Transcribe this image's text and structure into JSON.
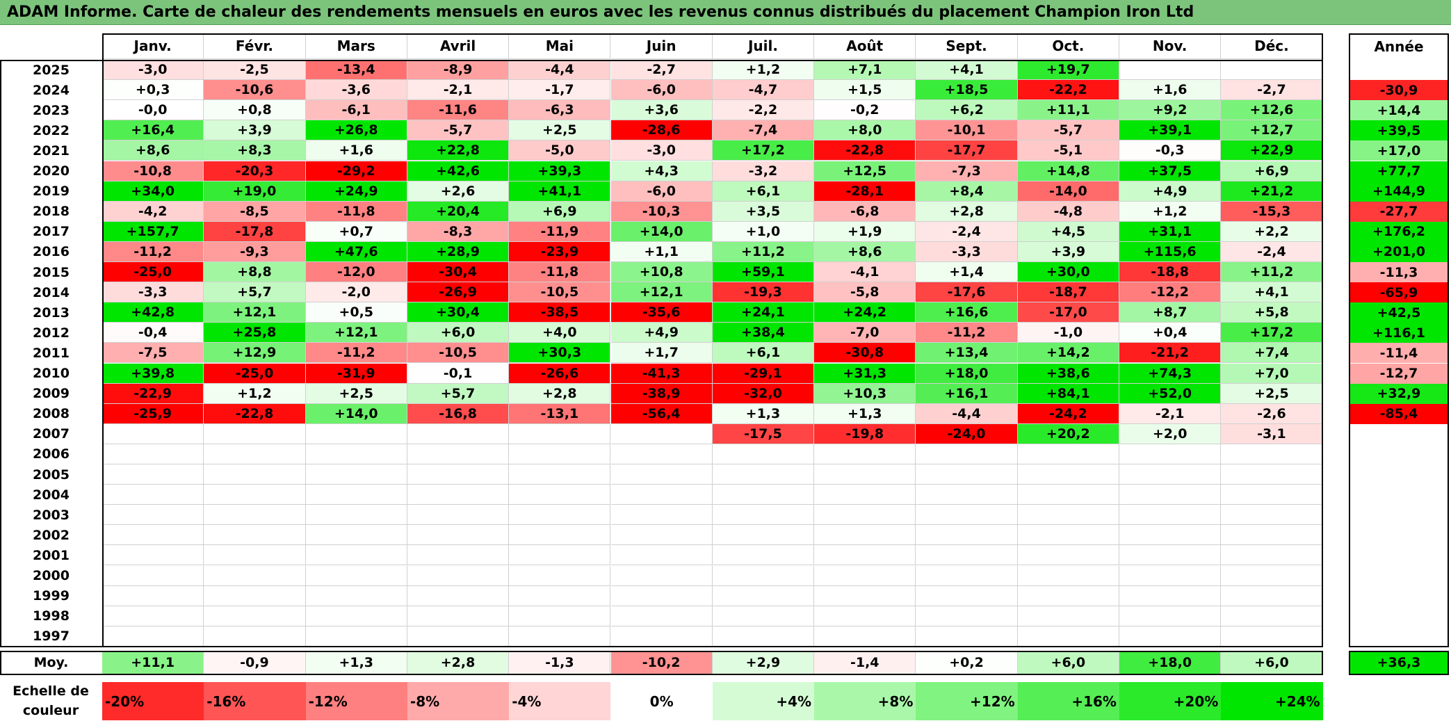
{
  "title": "ADAM Informe. Carte de chaleur des rendements mensuels en euros avec les revenus connus distribués du placement Champion Iron Ltd",
  "colors": {
    "title_bg": "#7cc47c",
    "negative": "#ff0000",
    "positive": "#00e600",
    "neutral": "#ffffff"
  },
  "chart_data": {
    "type": "heatmap",
    "title": "ADAM Informe. Carte de chaleur des rendements mensuels en euros avec les revenus connus distribués du placement Champion Iron Ltd",
    "months": [
      "Janv.",
      "Févr.",
      "Mars",
      "Avril",
      "Mai",
      "Juin",
      "Juil.",
      "Août",
      "Sept.",
      "Oct.",
      "Nov.",
      "Déc."
    ],
    "year_header": "Année",
    "rows": [
      {
        "year": "2025",
        "values": [
          "-3,0",
          "-2,5",
          "-13,4",
          "-8,9",
          "-4,4",
          "-2,7",
          "+1,2",
          "+7,1",
          "+4,1",
          "+19,7",
          "",
          ""
        ],
        "annual": ""
      },
      {
        "year": "2024",
        "values": [
          "+0,3",
          "-10,6",
          "-3,6",
          "-2,1",
          "-1,7",
          "-6,0",
          "-4,7",
          "+1,5",
          "+18,5",
          "-22,2",
          "+1,6",
          "-2,7"
        ],
        "annual": "-30,9"
      },
      {
        "year": "2023",
        "values": [
          "-0,0",
          "+0,8",
          "-6,1",
          "-11,6",
          "-6,3",
          "+3,6",
          "-2,2",
          "-0,2",
          "+6,2",
          "+11,1",
          "+9,2",
          "+12,6"
        ],
        "annual": "+14,4"
      },
      {
        "year": "2022",
        "values": [
          "+16,4",
          "+3,9",
          "+26,8",
          "-5,7",
          "+2,5",
          "-28,6",
          "-7,4",
          "+8,0",
          "-10,1",
          "-5,7",
          "+39,1",
          "+12,7"
        ],
        "annual": "+39,5"
      },
      {
        "year": "2021",
        "values": [
          "+8,6",
          "+8,3",
          "+1,6",
          "+22,8",
          "-5,0",
          "-3,0",
          "+17,2",
          "-22,8",
          "-17,7",
          "-5,1",
          "-0,3",
          "+22,9"
        ],
        "annual": "+17,0"
      },
      {
        "year": "2020",
        "values": [
          "-10,8",
          "-20,3",
          "-29,2",
          "+42,6",
          "+39,3",
          "+4,3",
          "-3,2",
          "+12,5",
          "-7,3",
          "+14,8",
          "+37,5",
          "+6,9"
        ],
        "annual": "+77,7"
      },
      {
        "year": "2019",
        "values": [
          "+34,0",
          "+19,0",
          "+24,9",
          "+2,6",
          "+41,1",
          "-6,0",
          "+6,1",
          "-28,1",
          "+8,4",
          "-14,0",
          "+4,9",
          "+21,2"
        ],
        "annual": "+144,9"
      },
      {
        "year": "2018",
        "values": [
          "-4,2",
          "-8,5",
          "-11,8",
          "+20,4",
          "+6,9",
          "-10,3",
          "+3,5",
          "-6,8",
          "+2,8",
          "-4,8",
          "+1,2",
          "-15,3"
        ],
        "annual": "-27,7"
      },
      {
        "year": "2017",
        "values": [
          "+157,7",
          "-17,8",
          "+0,7",
          "-8,3",
          "-11,9",
          "+14,0",
          "+1,0",
          "+1,9",
          "-2,4",
          "+4,5",
          "+31,1",
          "+2,2"
        ],
        "annual": "+176,2"
      },
      {
        "year": "2016",
        "values": [
          "-11,2",
          "-9,3",
          "+47,6",
          "+28,9",
          "-23,9",
          "+1,1",
          "+11,2",
          "+8,6",
          "-3,3",
          "+3,9",
          "+115,6",
          "-2,4"
        ],
        "annual": "+201,0"
      },
      {
        "year": "2015",
        "values": [
          "-25,0",
          "+8,8",
          "-12,0",
          "-30,4",
          "-11,8",
          "+10,8",
          "+59,1",
          "-4,1",
          "+1,4",
          "+30,0",
          "-18,8",
          "+11,2"
        ],
        "annual": "-11,3"
      },
      {
        "year": "2014",
        "values": [
          "-3,3",
          "+5,7",
          "-2,0",
          "-26,9",
          "-10,5",
          "+12,1",
          "-19,3",
          "-5,8",
          "-17,6",
          "-18,7",
          "-12,2",
          "+4,1"
        ],
        "annual": "-65,9"
      },
      {
        "year": "2013",
        "values": [
          "+42,8",
          "+12,1",
          "+0,5",
          "+30,4",
          "-38,5",
          "-35,6",
          "+24,1",
          "+24,2",
          "+16,6",
          "-17,0",
          "+8,7",
          "+5,8"
        ],
        "annual": "+42,5"
      },
      {
        "year": "2012",
        "values": [
          "-0,4",
          "+25,8",
          "+12,1",
          "+6,0",
          "+4,0",
          "+4,9",
          "+38,4",
          "-7,0",
          "-11,2",
          "-1,0",
          "+0,4",
          "+17,2"
        ],
        "annual": "+116,1"
      },
      {
        "year": "2011",
        "values": [
          "-7,5",
          "+12,9",
          "-11,2",
          "-10,5",
          "+30,3",
          "+1,7",
          "+6,1",
          "-30,8",
          "+13,4",
          "+14,2",
          "-21,2",
          "+7,4"
        ],
        "annual": "-11,4"
      },
      {
        "year": "2010",
        "values": [
          "+39,8",
          "-25,0",
          "-31,9",
          "-0,1",
          "-26,6",
          "-41,3",
          "-29,1",
          "+31,3",
          "+18,0",
          "+38,6",
          "+74,3",
          "+7,0"
        ],
        "annual": "-12,7"
      },
      {
        "year": "2009",
        "values": [
          "-22,9",
          "+1,2",
          "+2,5",
          "+5,7",
          "+2,8",
          "-38,9",
          "-32,0",
          "+10,3",
          "+16,1",
          "+84,1",
          "+52,0",
          "+2,5"
        ],
        "annual": "+32,9"
      },
      {
        "year": "2008",
        "values": [
          "-25,9",
          "-22,8",
          "+14,0",
          "-16,8",
          "-13,1",
          "-56,4",
          "+1,3",
          "+1,3",
          "-4,4",
          "-24,2",
          "-2,1",
          "-2,6"
        ],
        "annual": "-85,4"
      },
      {
        "year": "2007",
        "values": [
          "",
          "",
          "",
          "",
          "",
          "",
          "-17,5",
          "-19,8",
          "-24,0",
          "+20,2",
          "+2,0",
          "-3,1"
        ],
        "annual": ""
      },
      {
        "year": "2006",
        "values": [
          "",
          "",
          "",
          "",
          "",
          "",
          "",
          "",
          "",
          "",
          "",
          ""
        ],
        "annual": ""
      },
      {
        "year": "2005",
        "values": [
          "",
          "",
          "",
          "",
          "",
          "",
          "",
          "",
          "",
          "",
          "",
          ""
        ],
        "annual": ""
      },
      {
        "year": "2004",
        "values": [
          "",
          "",
          "",
          "",
          "",
          "",
          "",
          "",
          "",
          "",
          "",
          ""
        ],
        "annual": ""
      },
      {
        "year": "2003",
        "values": [
          "",
          "",
          "",
          "",
          "",
          "",
          "",
          "",
          "",
          "",
          "",
          ""
        ],
        "annual": ""
      },
      {
        "year": "2002",
        "values": [
          "",
          "",
          "",
          "",
          "",
          "",
          "",
          "",
          "",
          "",
          "",
          ""
        ],
        "annual": ""
      },
      {
        "year": "2001",
        "values": [
          "",
          "",
          "",
          "",
          "",
          "",
          "",
          "",
          "",
          "",
          "",
          ""
        ],
        "annual": ""
      },
      {
        "year": "2000",
        "values": [
          "",
          "",
          "",
          "",
          "",
          "",
          "",
          "",
          "",
          "",
          "",
          ""
        ],
        "annual": ""
      },
      {
        "year": "1999",
        "values": [
          "",
          "",
          "",
          "",
          "",
          "",
          "",
          "",
          "",
          "",
          "",
          ""
        ],
        "annual": ""
      },
      {
        "year": "1998",
        "values": [
          "",
          "",
          "",
          "",
          "",
          "",
          "",
          "",
          "",
          "",
          "",
          ""
        ],
        "annual": ""
      },
      {
        "year": "1997",
        "values": [
          "",
          "",
          "",
          "",
          "",
          "",
          "",
          "",
          "",
          "",
          "",
          ""
        ],
        "annual": ""
      }
    ],
    "average": {
      "label": "Moy.",
      "values": [
        "+11,1",
        "-0,9",
        "+1,3",
        "+2,8",
        "-1,3",
        "-10,2",
        "+2,9",
        "-1,4",
        "+0,2",
        "+6,0",
        "+18,0",
        "+6,0"
      ],
      "annual": "+36,3"
    },
    "scale": {
      "label": "Echelle de couleur",
      "items": [
        {
          "text": "-20%",
          "value": -20,
          "align": "left"
        },
        {
          "text": "-16%",
          "value": -16,
          "align": "left"
        },
        {
          "text": "-12%",
          "value": -12,
          "align": "left"
        },
        {
          "text": "-8%",
          "value": -8,
          "align": "left"
        },
        {
          "text": "-4%",
          "value": -4,
          "align": "left"
        },
        {
          "text": "0%",
          "value": 0,
          "align": "center"
        },
        {
          "text": "+4%",
          "value": 4,
          "align": "right"
        },
        {
          "text": "+8%",
          "value": 8,
          "align": "right"
        },
        {
          "text": "+12%",
          "value": 12,
          "align": "right"
        },
        {
          "text": "+16%",
          "value": 16,
          "align": "right"
        },
        {
          "text": "+20%",
          "value": 20,
          "align": "right"
        },
        {
          "text": "+24%",
          "value": 24,
          "align": "right"
        }
      ]
    }
  }
}
